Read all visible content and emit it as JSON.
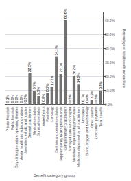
{
  "chart_data": {
    "type": "bar",
    "categories": [
      "Private hospitals",
      "Public hospitals",
      "Day clinics/procedure operating theatres",
      "Mental health and substance abuse",
      "Specialists, rehab, and hospice",
      "General practitioners",
      "Medical specialists",
      "Surgical specialists",
      "Anaesthetics",
      "Radiology",
      "Pathology",
      "Dentists and dental specialists",
      "Supplementary health professionals",
      "Complementary practitioners",
      "Managed care out-of-hospital",
      "Medicines dispensed by pharmacies",
      "Medicines dispensed by all practitioners",
      "Ambulance",
      "Blood, oxygen and haematology",
      "Other benefits",
      "Evacuation payments",
      "Total benefits"
    ],
    "values": [
      0.1,
      0.0,
      0.0,
      0.0,
      0.5,
      22.5,
      9.7,
      5.8,
      0.8,
      8.2,
      12.7,
      34.1,
      22.0,
      60.6,
      0.5,
      20.2,
      14.5,
      0.7,
      0.4,
      3.2,
      0.5,
      9.8
    ],
    "value_labels": [
      "0.1%",
      "0.0%",
      "0.0%",
      "0.0%",
      "0.5%",
      "22.5%",
      "9.7%",
      "5.8%",
      "0.8%",
      "8.2%",
      "12.7%",
      "34.1%",
      "22.0%",
      "60.6%",
      "0.5%",
      "20.2%",
      "14.5%",
      "0.7%",
      "0.4%",
      "3.2%",
      "0.5%",
      "9.8%"
    ],
    "data_labels": true,
    "color": "#717171",
    "xlabel": "Benefit category group",
    "ylabel": "Percentage of total benefit expenditure",
    "ylim": [
      0,
      66
    ],
    "yticks": [
      {
        "value": 0,
        "label": "0.0%"
      },
      {
        "value": 10,
        "label": "10.0%"
      },
      {
        "value": 20,
        "label": "20.0%"
      },
      {
        "value": 30,
        "label": "30.0%"
      },
      {
        "value": 40,
        "label": "40.0%"
      },
      {
        "value": 50,
        "label": "50.0%"
      },
      {
        "value": 60,
        "label": "60.0%"
      }
    ],
    "grid": true
  }
}
